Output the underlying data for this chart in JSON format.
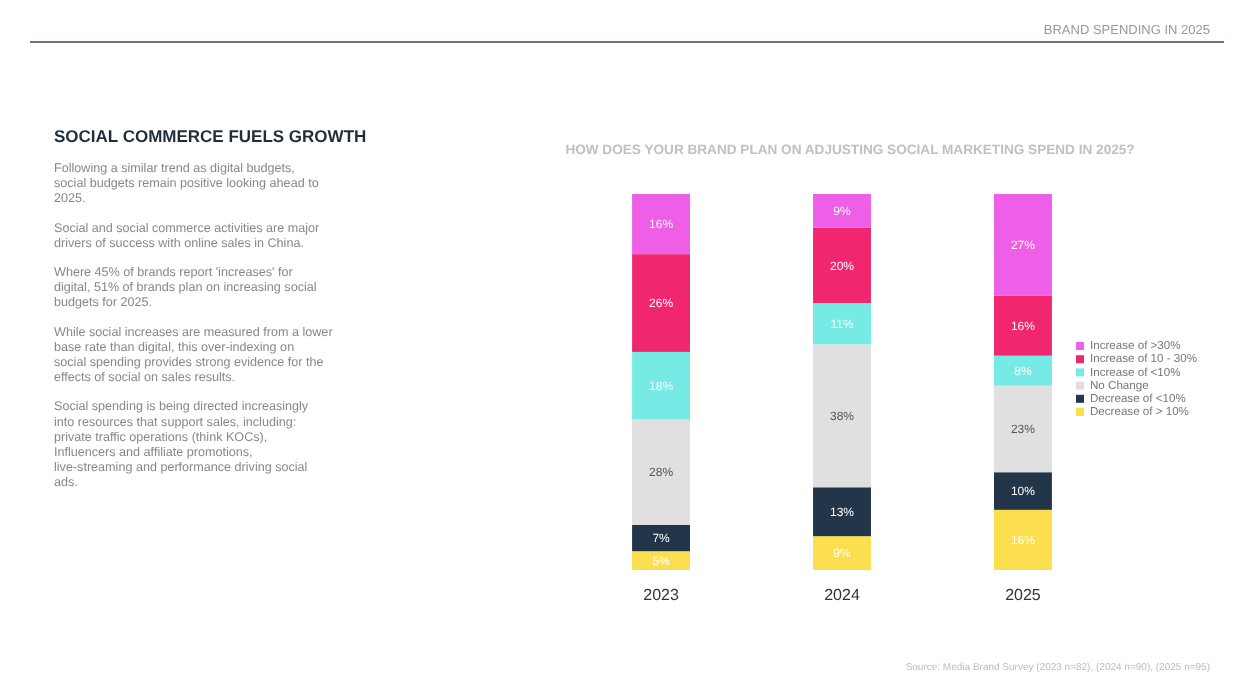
{
  "chart_data": {
    "type": "bar",
    "stacked": true,
    "title": "HOW DOES YOUR BRAND PLAN ON ADJUSTING SOCIAL MARKETING SPEND IN 2025?",
    "categories": [
      "2023",
      "2024",
      "2025"
    ],
    "series": [
      {
        "name": "Decrease of > 10%",
        "color": "#fbdf4f",
        "values": [
          5,
          9,
          16
        ],
        "value_labels": [
          "5%",
          "9%",
          "16%"
        ]
      },
      {
        "name": "Decrease of <10%",
        "color": "#233549",
        "values": [
          7,
          13,
          10
        ],
        "value_labels": [
          "7%",
          "13%",
          "10%"
        ]
      },
      {
        "name": "No Change",
        "color": "#e0e0e0",
        "values": [
          28,
          38,
          23
        ],
        "value_labels": [
          "28%",
          "38%",
          "23%"
        ]
      },
      {
        "name": "Increase of <10%",
        "color": "#76ebe6",
        "values": [
          18,
          11,
          8
        ],
        "value_labels": [
          "18%",
          "11%",
          "8%"
        ]
      },
      {
        "name": "Increase of 10 - 30%",
        "color": "#f0266f",
        "values": [
          26,
          20,
          16
        ],
        "value_labels": [
          "26%",
          "20%",
          "16%"
        ]
      },
      {
        "name": "Increase of >30%",
        "color": "#ee5ee6",
        "values": [
          16,
          9,
          27
        ],
        "value_labels": [
          "16%",
          "9%",
          "27%"
        ]
      }
    ],
    "ylim": [
      0,
      100
    ],
    "tick_labels": "x",
    "legend": "right",
    "annotations": [
      "BRAND SPENDING IN 2025",
      "SOCIAL COMMERCE FUELS GROWTH",
      "Following a similar trend as digital budgets, social budgets remain positive looking ahead to 2025.",
      "Social and social commerce activities are major drivers of success with online sales in China.",
      "Where 45% of brands report 'increases' for digital, 51% of brands plan on increasing social budgets for 2025.",
      "While social increases are measured from a lower base rate than digital, this over-indexing on social spending provides strong evidence for the effects of social on sales results.",
      "Social spending is being directed increasingly into resources that support sales, including: private traffic operations (think KOCs), Influencers and affiliate promotions, live-streaming and performance driving social ads.",
      "Source: Media Brand Survey (2023 n=82), (2024 n=90), (2025 n=95)"
    ]
  }
}
